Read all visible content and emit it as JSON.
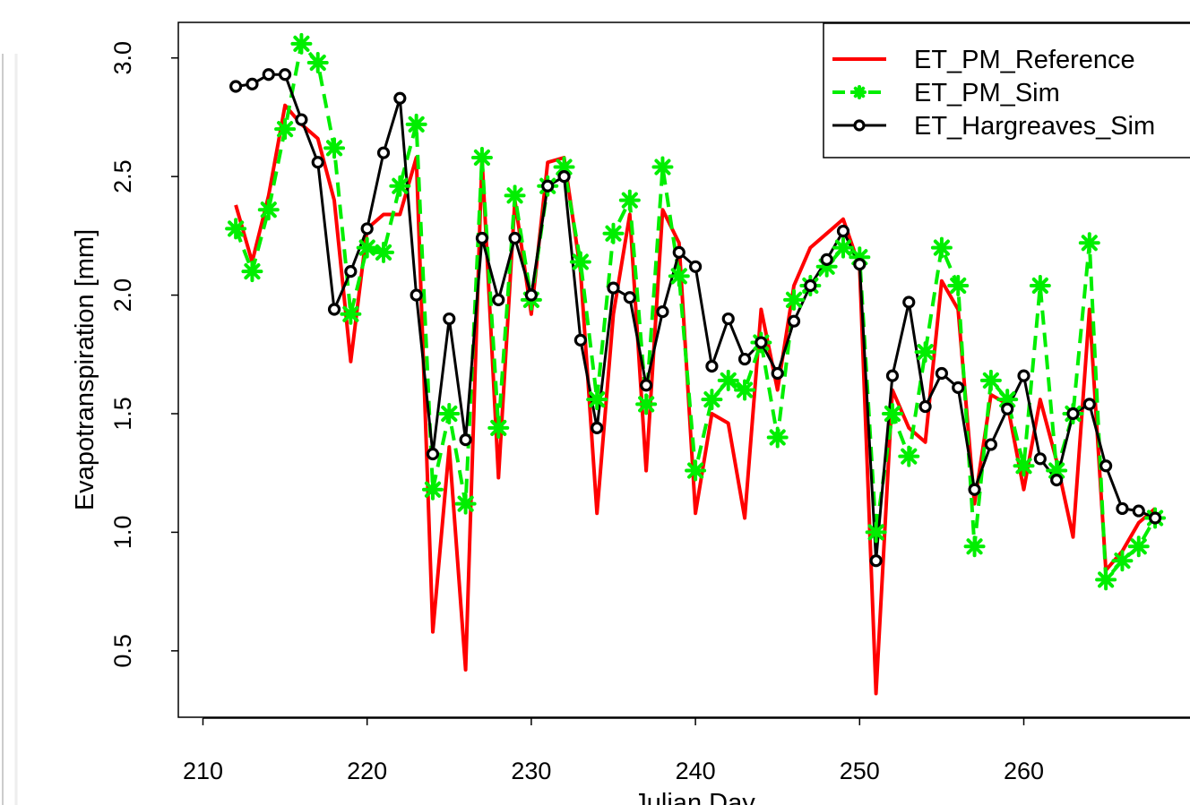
{
  "chart_data": {
    "type": "line",
    "title": "",
    "xlabel": "Julian Day",
    "ylabel": "Evapotranspiration [mm]",
    "xlim": [
      208.5,
      274
    ],
    "ylim": [
      0.22,
      3.15
    ],
    "x_ticks": [
      210,
      220,
      230,
      240,
      250,
      260
    ],
    "y_ticks": [
      0.5,
      1.0,
      1.5,
      2.0,
      2.5,
      3.0
    ],
    "x_tick_labels": [
      "210",
      "220",
      "230",
      "240",
      "250",
      "260"
    ],
    "y_tick_labels": [
      "0.5",
      "1.0",
      "1.5",
      "2.0",
      "2.5",
      "3.0"
    ],
    "grid": false,
    "legend": "top-right",
    "x": [
      212,
      213,
      214,
      215,
      216,
      217,
      218,
      219,
      220,
      221,
      222,
      223,
      224,
      225,
      226,
      227,
      228,
      229,
      230,
      231,
      232,
      233,
      234,
      235,
      236,
      237,
      238,
      239,
      240,
      241,
      242,
      243,
      244,
      245,
      246,
      247,
      248,
      249,
      250,
      251,
      252,
      253,
      254,
      255,
      256,
      257,
      258,
      259,
      260,
      261,
      262,
      263,
      264,
      265,
      266,
      267,
      268
    ],
    "series": [
      {
        "name": "ET_PM_Reference",
        "color": "#ff0000",
        "style": "solid",
        "marker": "none",
        "values": [
          2.38,
          2.14,
          2.42,
          2.8,
          2.72,
          2.66,
          2.4,
          1.72,
          2.28,
          2.34,
          2.34,
          2.58,
          0.58,
          1.36,
          0.42,
          2.58,
          1.23,
          2.4,
          1.92,
          2.56,
          2.58,
          2.1,
          1.08,
          1.92,
          2.34,
          1.26,
          2.36,
          2.22,
          1.08,
          1.5,
          1.46,
          1.06,
          1.94,
          1.6,
          2.04,
          2.2,
          2.26,
          2.32,
          2.12,
          0.32,
          1.6,
          1.44,
          1.38,
          2.06,
          1.94,
          1.12,
          1.58,
          1.54,
          1.18,
          1.56,
          1.3,
          0.98,
          1.94,
          0.84,
          0.92,
          1.04,
          1.1
        ]
      },
      {
        "name": "ET_PM_Sim",
        "color": "#00ee00",
        "style": "dashed",
        "marker": "asterisk",
        "values": [
          2.28,
          2.1,
          2.36,
          2.7,
          3.06,
          2.98,
          2.62,
          1.92,
          2.2,
          2.18,
          2.46,
          2.72,
          1.18,
          1.5,
          1.12,
          2.58,
          1.44,
          2.42,
          1.98,
          2.46,
          2.54,
          2.14,
          1.56,
          2.26,
          2.4,
          1.54,
          2.54,
          2.08,
          1.26,
          1.56,
          1.64,
          1.6,
          1.8,
          1.4,
          1.98,
          2.04,
          2.12,
          2.2,
          2.16,
          1.0,
          1.5,
          1.32,
          1.76,
          2.2,
          2.04,
          0.94,
          1.64,
          1.56,
          1.28,
          2.04,
          1.26,
          1.5,
          2.22,
          0.8,
          0.88,
          0.94,
          1.06
        ]
      },
      {
        "name": "ET_Hargreaves_Sim",
        "color": "#000000",
        "style": "solid",
        "marker": "circle",
        "values": [
          2.88,
          2.89,
          2.93,
          2.93,
          2.74,
          2.56,
          1.94,
          2.1,
          2.28,
          2.6,
          2.83,
          2.0,
          1.33,
          1.9,
          1.39,
          2.24,
          1.98,
          2.24,
          2.0,
          2.46,
          2.5,
          1.81,
          1.44,
          2.03,
          1.99,
          1.62,
          1.93,
          2.18,
          2.12,
          1.7,
          1.9,
          1.73,
          1.8,
          1.67,
          1.89,
          2.04,
          2.15,
          2.27,
          2.13,
          0.88,
          1.66,
          1.97,
          1.53,
          1.67,
          1.61,
          1.18,
          1.37,
          1.52,
          1.66,
          1.31,
          1.22,
          1.5,
          1.54,
          1.28,
          1.1,
          1.09,
          1.06
        ]
      }
    ]
  }
}
